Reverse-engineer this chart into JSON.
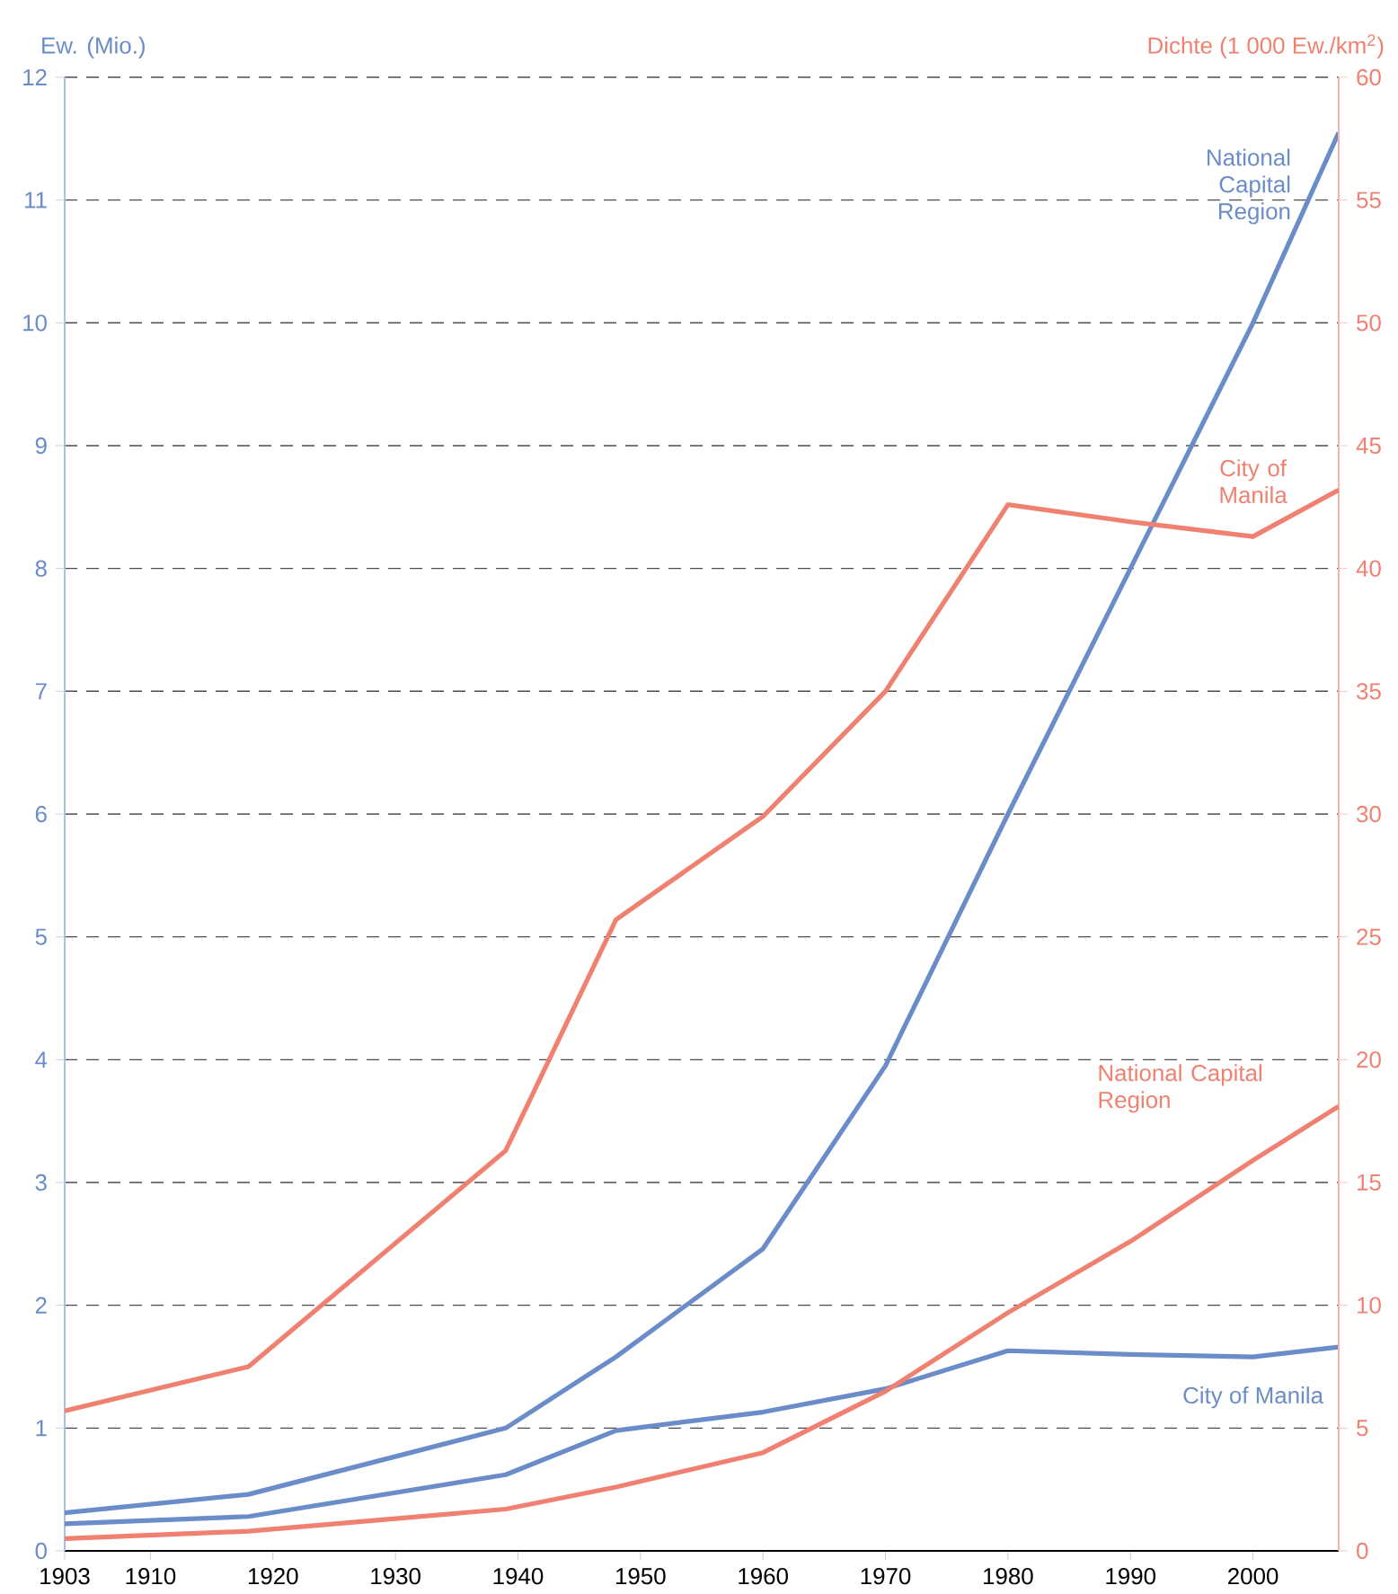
{
  "chart_data": {
    "type": "line",
    "ylabel": "Ew. (Mio.)",
    "y2label": "Dichte (1 000 Ew./km$^{2}$)",
    "xlim": [
      1903,
      2007
    ],
    "xticks": [
      1903,
      1910,
      1920,
      1930,
      1940,
      1950,
      1960,
      1970,
      1980,
      1990,
      2000
    ],
    "ylim": [
      0,
      12
    ],
    "yticks": [
      0,
      1,
      2,
      3,
      4,
      5,
      6,
      7,
      8,
      9,
      10,
      11,
      12
    ],
    "y2lim": [
      0,
      60
    ],
    "y2ticks": [
      0,
      5,
      10,
      15,
      20,
      25,
      30,
      35,
      40,
      45,
      50,
      55,
      60
    ],
    "grid": "y",
    "marker": "none",
    "line_style": "solid",
    "series": [
      {
        "name": "National Capital Region",
        "color": "#6a8cc8",
        "x": [
          1903,
          1918,
          1939,
          1948,
          1960,
          1970,
          1980,
          1990,
          2000,
          2007
        ],
        "values": [
          0.31,
          0.46,
          1.0,
          1.58,
          2.46,
          3.95,
          6.0,
          8.0,
          10.0,
          11.55
        ]
      },
      {
        "name": "City of Manila",
        "color": "#6a8cc8",
        "x": [
          1903,
          1918,
          1939,
          1948,
          1960,
          1970,
          1980,
          1990,
          2000,
          2007
        ],
        "values": [
          0.22,
          0.28,
          0.62,
          0.98,
          1.13,
          1.32,
          1.63,
          1.6,
          1.58,
          1.66
        ]
      },
      {
        "name": "City of Manila",
        "color": "#f08070",
        "axis": "y2",
        "x": [
          1903,
          1918,
          1939,
          1948,
          1960,
          1970,
          1980,
          1990,
          2000,
          2007
        ],
        "values": [
          5.7,
          7.5,
          16.3,
          25.7,
          29.9,
          35.0,
          42.6,
          41.9,
          41.3,
          43.2
        ]
      },
      {
        "name": "National Capital Region",
        "color": "#f08070",
        "axis": "y2",
        "x": [
          1903,
          1918,
          1939,
          1948,
          1960,
          1970,
          1980,
          1990,
          2000,
          2007
        ],
        "values": [
          0.5,
          0.8,
          1.7,
          2.6,
          4.0,
          6.5,
          9.7,
          12.6,
          15.9,
          18.1
        ]
      }
    ]
  }
}
